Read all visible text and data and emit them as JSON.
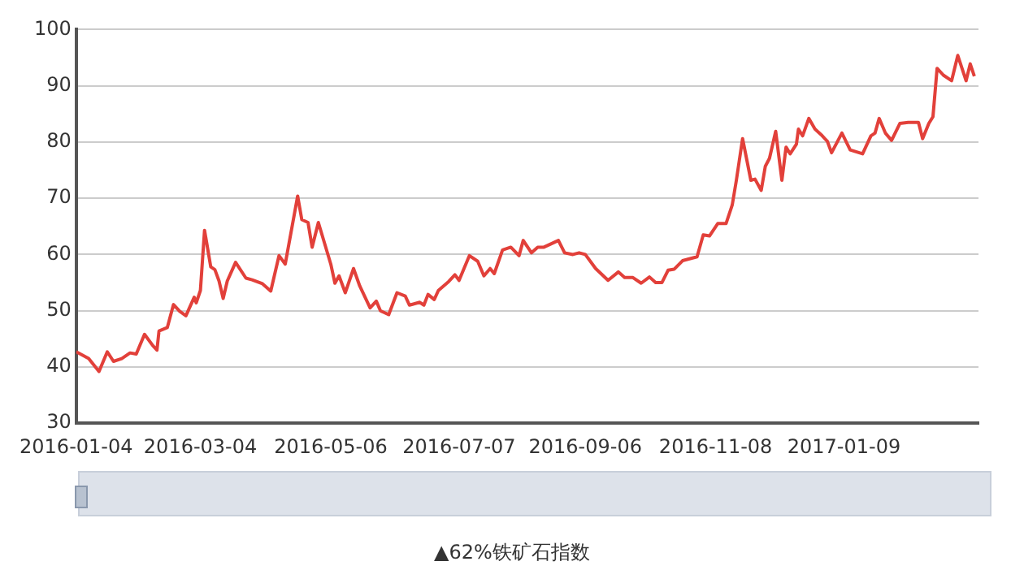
{
  "chart_data": {
    "type": "line",
    "x": [
      "2016-01-04",
      "2016-01-10",
      "2016-01-15",
      "2016-01-19",
      "2016-01-22",
      "2016-01-26",
      "2016-01-30",
      "2016-02-02",
      "2016-02-06",
      "2016-02-10",
      "2016-02-12",
      "2016-02-13",
      "2016-02-17",
      "2016-02-20",
      "2016-02-23",
      "2016-02-26",
      "2016-03-01",
      "2016-03-02",
      "2016-03-04",
      "2016-03-06",
      "2016-03-09",
      "2016-03-11",
      "2016-03-13",
      "2016-03-15",
      "2016-03-17",
      "2016-03-21",
      "2016-03-26",
      "2016-03-29",
      "2016-04-03",
      "2016-04-07",
      "2016-04-11",
      "2016-04-14",
      "2016-04-20",
      "2016-04-22",
      "2016-04-25",
      "2016-04-27",
      "2016-04-30",
      "2016-05-06",
      "2016-05-08",
      "2016-05-10",
      "2016-05-13",
      "2016-05-17",
      "2016-05-20",
      "2016-05-25",
      "2016-05-28",
      "2016-05-30",
      "2016-06-03",
      "2016-06-07",
      "2016-06-11",
      "2016-06-13",
      "2016-06-18",
      "2016-06-20",
      "2016-06-22",
      "2016-06-25",
      "2016-06-27",
      "2016-07-02",
      "2016-07-05",
      "2016-07-07",
      "2016-07-12",
      "2016-07-16",
      "2016-07-19",
      "2016-07-22",
      "2016-07-24",
      "2016-07-28",
      "2016-08-01",
      "2016-08-05",
      "2016-08-07",
      "2016-08-11",
      "2016-08-14",
      "2016-08-17",
      "2016-08-24",
      "2016-08-27",
      "2016-08-31",
      "2016-09-03",
      "2016-09-06",
      "2016-09-11",
      "2016-09-17",
      "2016-09-22",
      "2016-09-25",
      "2016-09-29",
      "2016-10-03",
      "2016-10-07",
      "2016-10-10",
      "2016-10-13",
      "2016-10-16",
      "2016-10-19",
      "2016-10-23",
      "2016-10-30",
      "2016-11-02",
      "2016-11-05",
      "2016-11-09",
      "2016-11-13",
      "2016-11-16",
      "2016-11-18",
      "2016-11-21",
      "2016-11-25",
      "2016-11-27",
      "2016-11-30",
      "2016-12-02",
      "2016-12-04",
      "2016-12-07",
      "2016-12-10",
      "2016-12-12",
      "2016-12-14",
      "2016-12-17",
      "2016-12-18",
      "2016-12-20",
      "2016-12-23",
      "2016-12-26",
      "2016-12-29",
      "2017-01-01",
      "2017-01-03",
      "2017-01-08",
      "2017-01-12",
      "2017-01-18",
      "2017-01-22",
      "2017-01-24",
      "2017-01-26",
      "2017-01-29",
      "2017-02-01",
      "2017-02-05",
      "2017-02-09",
      "2017-02-14",
      "2017-02-16",
      "2017-02-19",
      "2017-02-21",
      "2017-02-23",
      "2017-02-26",
      "2017-03-02",
      "2017-03-05",
      "2017-03-09",
      "2017-03-11",
      "2017-03-13"
    ],
    "series": [
      {
        "color": "#e2403a",
        "values": [
          42.7,
          41.5,
          39.2,
          42.7,
          41,
          41.5,
          42.5,
          42.3,
          45.8,
          43.8,
          43,
          46.4,
          47,
          51.1,
          49.9,
          49.1,
          52.4,
          51.4,
          53.6,
          64.3,
          57.8,
          57.3,
          55.3,
          52.2,
          55.3,
          58.6,
          55.8,
          55.5,
          54.8,
          53.5,
          59.8,
          58.3,
          70.4,
          66.2,
          65.7,
          61.3,
          65.7,
          58.3,
          54.9,
          56.2,
          53.2,
          57.5,
          54.4,
          50.5,
          51.7,
          50,
          49.3,
          53.2,
          52.6,
          51,
          51.5,
          51,
          52.9,
          52,
          53.6,
          55.2,
          56.4,
          55.4,
          59.8,
          58.8,
          56.2,
          57.5,
          56.6,
          60.8,
          61.3,
          59.8,
          62.5,
          60.3,
          61.3,
          61.3,
          62.5,
          60.3,
          60,
          60.3,
          60,
          57.5,
          55.4,
          56.9,
          55.9,
          55.9,
          54.9,
          56,
          55,
          55,
          57.2,
          57.4,
          58.9,
          59.6,
          63.5,
          63.3,
          65.5,
          65.5,
          68.8,
          73.2,
          80.6,
          73.2,
          73.4,
          71.4,
          75.7,
          77.1,
          81.9,
          73.2,
          79.1,
          77.9,
          79.6,
          82.3,
          81.1,
          84.2,
          82.3,
          81.3,
          80.1,
          78.1,
          81.6,
          78.6,
          77.9,
          81.1,
          81.6,
          84.2,
          81.6,
          80.3,
          83.3,
          83.5,
          83.5,
          80.6,
          83.3,
          84.5,
          93.1,
          91.9,
          90.9,
          95.4,
          90.9,
          93.9,
          91.7
        ]
      }
    ],
    "xlim": [
      "2016-01-04",
      "2017-03-15"
    ],
    "xticks": [
      "2016-01-04",
      "2016-03-04",
      "2016-05-06",
      "2016-07-07",
      "2016-09-06",
      "2016-11-08",
      "2017-01-09"
    ],
    "ylim": [
      30,
      100
    ],
    "yticks": [
      30,
      40,
      50,
      60,
      70,
      80,
      90,
      100
    ],
    "grid": "y",
    "legend": false,
    "marker": "none",
    "line_style": "solid",
    "annotations": [
      "▲62%铁矿石指数"
    ]
  }
}
